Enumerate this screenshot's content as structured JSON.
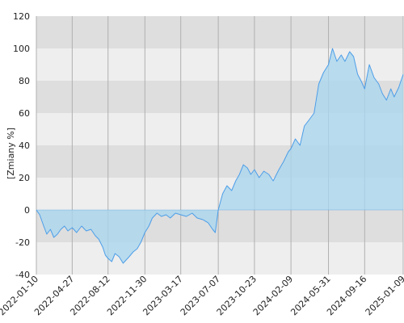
{
  "chart_data": {
    "type": "area",
    "title": "",
    "xlabel": "",
    "ylabel": "[Zmiany %]",
    "ylim": [
      -40,
      120
    ],
    "xlim": [
      "2022-01-10",
      "2025-01-09"
    ],
    "y_ticks": [
      -40,
      -20,
      0,
      20,
      40,
      60,
      80,
      100,
      120
    ],
    "x_ticks": [
      "2022-01-10",
      "2022-04-27",
      "2022-08-12",
      "2022-11-30",
      "2023-03-17",
      "2023-07-07",
      "2023-10-23",
      "2024-02-09",
      "2024-05-31",
      "2024-09-16",
      "2025-01-09"
    ],
    "grid": true,
    "legend": "none",
    "colors": {
      "line": "#4d9ee8",
      "fill": "#a9d6ee",
      "band_dark": "#dedede",
      "band_light": "#eeeeee",
      "gridline": "#b0b0b0"
    },
    "series": [
      {
        "x": [
          "2022-01-10",
          "2022-01-20",
          "2022-02-01",
          "2022-02-10",
          "2022-02-21",
          "2022-03-03",
          "2022-03-14",
          "2022-03-24",
          "2022-04-04",
          "2022-04-14",
          "2022-04-27",
          "2022-05-10",
          "2022-05-25",
          "2022-06-08",
          "2022-06-22",
          "2022-07-05",
          "2022-07-15",
          "2022-07-27",
          "2022-08-04",
          "2022-08-12",
          "2022-08-23",
          "2022-09-02",
          "2022-09-14",
          "2022-09-26",
          "2022-10-05",
          "2022-10-14",
          "2022-10-26",
          "2022-11-07",
          "2022-11-18",
          "2022-11-30",
          "2022-12-12",
          "2022-12-22",
          "2023-01-05",
          "2023-01-18",
          "2023-02-01",
          "2023-02-14",
          "2023-03-01",
          "2023-03-17",
          "2023-04-03",
          "2023-04-20",
          "2023-05-05",
          "2023-05-22",
          "2023-06-07",
          "2023-06-20",
          "2023-06-28",
          "2023-07-07",
          "2023-07-20",
          "2023-08-02",
          "2023-08-16",
          "2023-08-28",
          "2023-09-08",
          "2023-09-20",
          "2023-10-02",
          "2023-10-12",
          "2023-10-23",
          "2023-11-06",
          "2023-11-20",
          "2023-12-05",
          "2023-12-18",
          "2024-01-04",
          "2024-01-18",
          "2024-02-01",
          "2024-02-09",
          "2024-02-22",
          "2024-03-07",
          "2024-03-20",
          "2024-04-04",
          "2024-04-18",
          "2024-05-02",
          "2024-05-16",
          "2024-05-31",
          "2024-06-12",
          "2024-06-25",
          "2024-07-08",
          "2024-07-19",
          "2024-08-02",
          "2024-08-14",
          "2024-08-26",
          "2024-09-05",
          "2024-09-16",
          "2024-09-30",
          "2024-10-14",
          "2024-10-28",
          "2024-11-08",
          "2024-11-20",
          "2024-12-03",
          "2024-12-13",
          "2024-12-27",
          "2025-01-09"
        ],
        "y": [
          0,
          -3,
          -10,
          -15,
          -12,
          -17,
          -15,
          -12,
          -10,
          -13,
          -11,
          -14,
          -10,
          -13,
          -12,
          -16,
          -18,
          -23,
          -28,
          -30,
          -32,
          -27,
          -29,
          -33,
          -31,
          -29,
          -26,
          -24,
          -20,
          -14,
          -10,
          -5,
          -2,
          -4,
          -3,
          -5,
          -2,
          -3,
          -4,
          -2,
          -5,
          -6,
          -8,
          -12,
          -14,
          0,
          10,
          15,
          12,
          18,
          22,
          28,
          26,
          22,
          25,
          20,
          24,
          22,
          18,
          25,
          30,
          36,
          38,
          44,
          40,
          52,
          56,
          60,
          78,
          85,
          90,
          100,
          92,
          96,
          92,
          98,
          95,
          84,
          80,
          75,
          90,
          82,
          78,
          72,
          68,
          75,
          70,
          76,
          84
        ]
      }
    ]
  }
}
